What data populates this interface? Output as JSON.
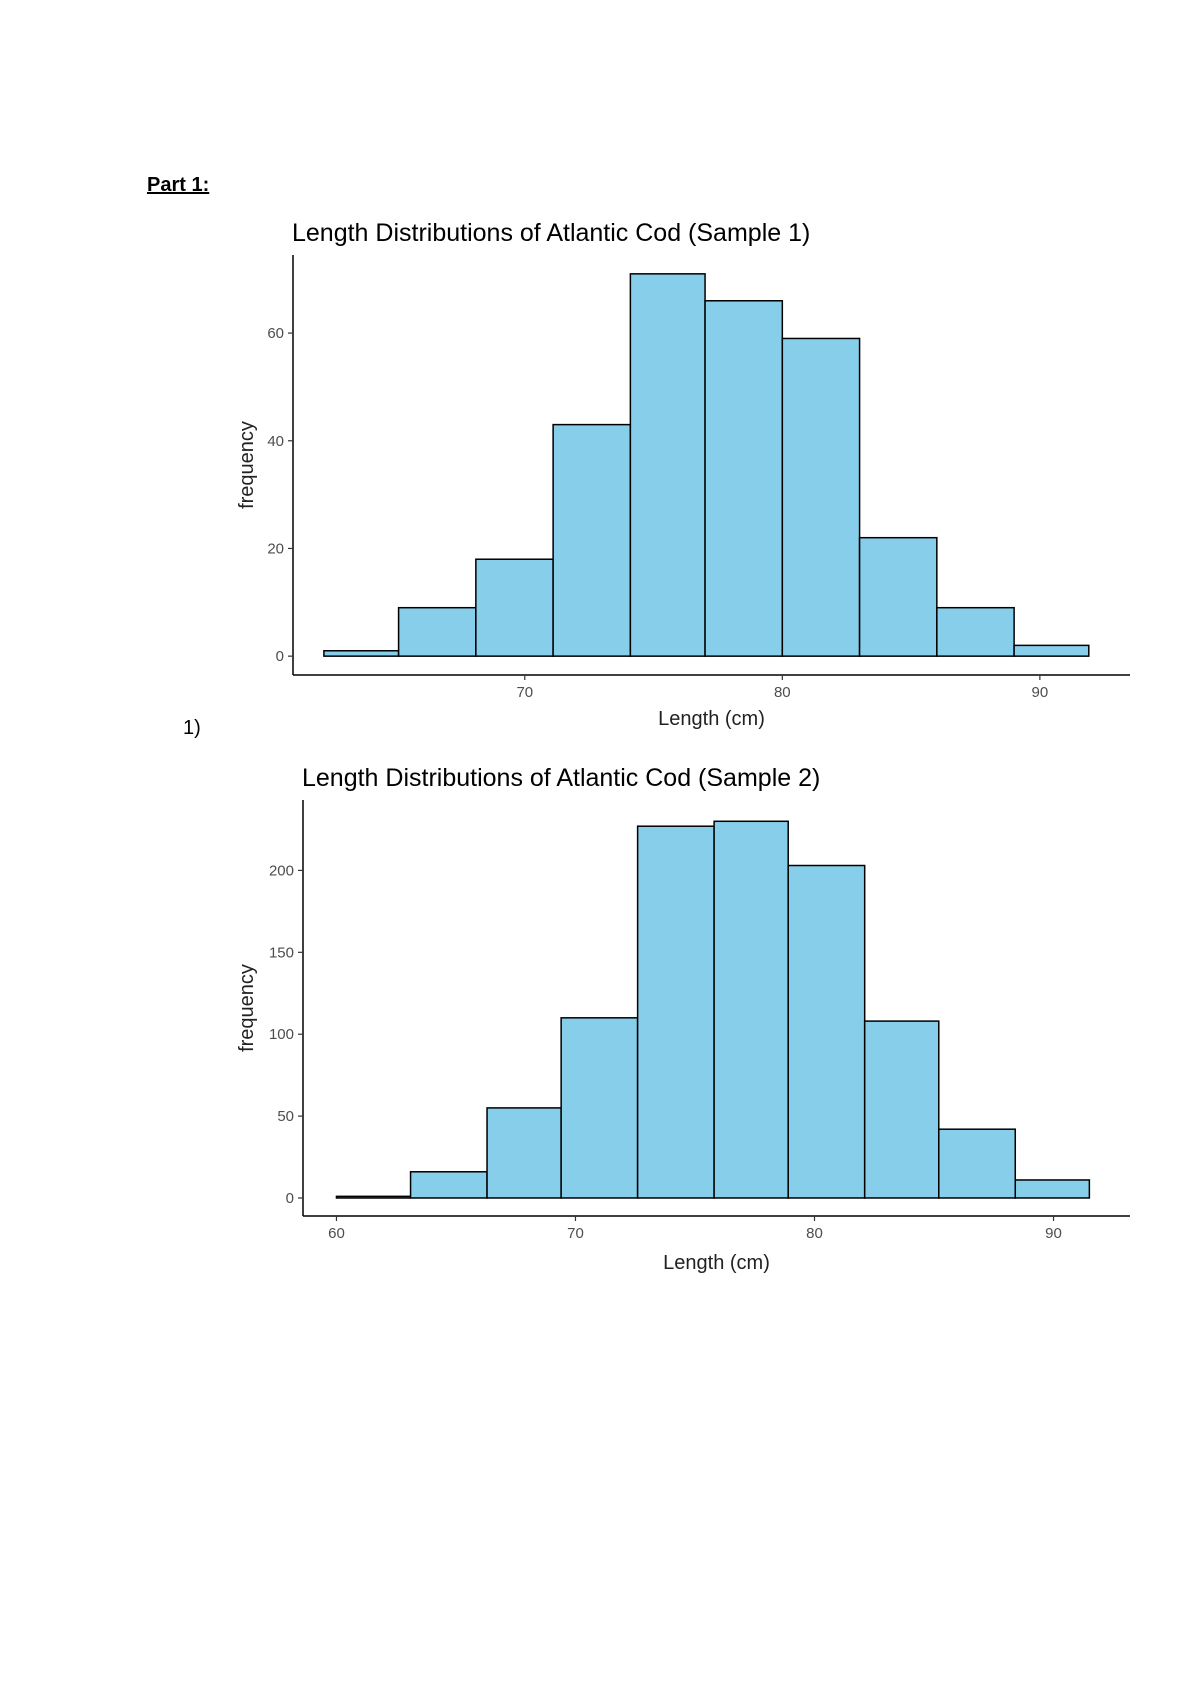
{
  "document": {
    "heading": "Part 1:",
    "question_number": "1)"
  },
  "colors": {
    "bar_fill": "#87ceeb",
    "bar_outline": "#000000"
  },
  "chart_data": [
    {
      "type": "bar",
      "title": "Length Distributions of Atlantic Cod (Sample 1)",
      "xlabel": "Length (cm)",
      "ylabel": "frequency",
      "xlim": [
        61,
        93.5
      ],
      "ylim": [
        -3.5,
        74.5
      ],
      "x_ticks": [
        70,
        80,
        90
      ],
      "y_ticks": [
        0,
        20,
        40,
        60
      ],
      "grid": false,
      "legend": "none",
      "bins": [
        {
          "x0": 62.2,
          "x1": 65.1,
          "count": 1
        },
        {
          "x0": 65.1,
          "x1": 68.1,
          "count": 9
        },
        {
          "x0": 68.1,
          "x1": 71.1,
          "count": 18
        },
        {
          "x0": 71.1,
          "x1": 74.1,
          "count": 43
        },
        {
          "x0": 74.1,
          "x1": 77.0,
          "count": 71
        },
        {
          "x0": 77.0,
          "x1": 80.0,
          "count": 66
        },
        {
          "x0": 80.0,
          "x1": 83.0,
          "count": 59
        },
        {
          "x0": 83.0,
          "x1": 86.0,
          "count": 22
        },
        {
          "x0": 86.0,
          "x1": 89.0,
          "count": 9
        },
        {
          "x0": 89.0,
          "x1": 91.9,
          "count": 2
        }
      ]
    },
    {
      "type": "bar",
      "title": "Length Distributions of Atlantic Cod (Sample 2)",
      "xlabel": "Length (cm)",
      "ylabel": "frequency",
      "xlim": [
        58.6,
        93.2
      ],
      "ylim": [
        -11,
        243
      ],
      "x_ticks": [
        60,
        70,
        80,
        90
      ],
      "y_ticks": [
        0,
        50,
        100,
        150,
        200
      ],
      "grid": false,
      "legend": "none",
      "bins": [
        {
          "x0": 60.0,
          "x1": 63.1,
          "count": 1
        },
        {
          "x0": 63.1,
          "x1": 66.3,
          "count": 16
        },
        {
          "x0": 66.3,
          "x1": 69.4,
          "count": 55
        },
        {
          "x0": 69.4,
          "x1": 72.6,
          "count": 110
        },
        {
          "x0": 72.6,
          "x1": 75.8,
          "count": 227
        },
        {
          "x0": 75.8,
          "x1": 78.9,
          "count": 230
        },
        {
          "x0": 78.9,
          "x1": 82.1,
          "count": 203
        },
        {
          "x0": 82.1,
          "x1": 85.2,
          "count": 108
        },
        {
          "x0": 85.2,
          "x1": 88.4,
          "count": 42
        },
        {
          "x0": 88.4,
          "x1": 91.5,
          "count": 11
        }
      ]
    }
  ]
}
